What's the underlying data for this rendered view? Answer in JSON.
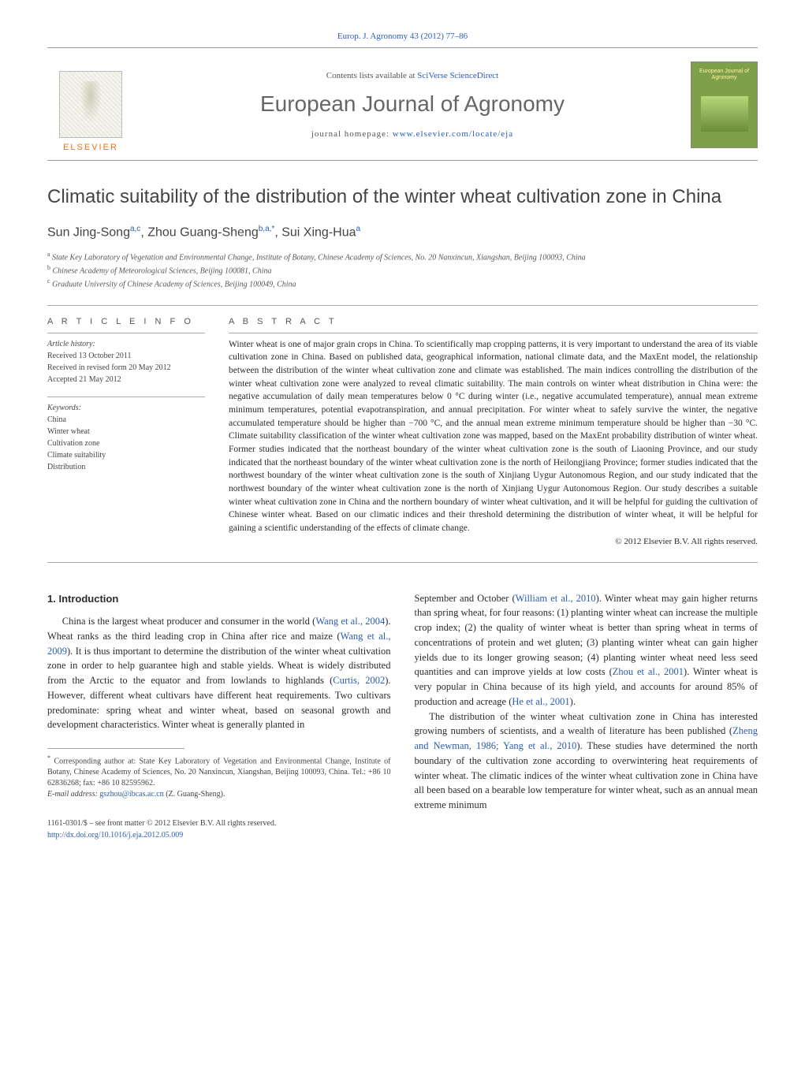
{
  "header": {
    "citation_prefix": "Europ. J. Agronomy 43 (2012) 77–86",
    "contents_line_prefix": "Contents lists available at ",
    "contents_line_link": "SciVerse ScienceDirect",
    "journal_title": "European Journal of Agronomy",
    "homepage_prefix": "journal homepage: ",
    "homepage_link": "www.elsevier.com/locate/eja",
    "publisher_word": "ELSEVIER",
    "cover_title": "European Journal of Agronomy"
  },
  "article": {
    "title": "Climatic suitability of the distribution of the winter wheat cultivation zone in China",
    "authors_html": "Sun Jing-Song",
    "author1": "Sun Jing-Song",
    "author1_sup": "a,c",
    "author2": ", Zhou Guang-Sheng",
    "author2_sup": "b,a,",
    "author2_star": "*",
    "author3": ", Sui Xing-Hua",
    "author3_sup": "a"
  },
  "affiliations": {
    "a_sup": "a",
    "a": " State Key Laboratory of Vegetation and Environmental Change, Institute of Botany, Chinese Academy of Sciences, No. 20 Nanxincun, Xiangshan, Beijing 100093, China",
    "b_sup": "b",
    "b": " Chinese Academy of Meteorological Sciences, Beijing 100081, China",
    "c_sup": "c",
    "c": " Graduate University of Chinese Academy of Sciences, Beijing 100049, China"
  },
  "info": {
    "heading": "A R T I C L E   I N F O",
    "history_label": "Article history:",
    "received": "Received 13 October 2011",
    "revised": "Received in revised form 20 May 2012",
    "accepted": "Accepted 21 May 2012",
    "keywords_label": "Keywords:",
    "kw1": "China",
    "kw2": "Winter wheat",
    "kw3": "Cultivation zone",
    "kw4": "Climate suitability",
    "kw5": "Distribution"
  },
  "abstract": {
    "heading": "A B S T R A C T",
    "text": "Winter wheat is one of major grain crops in China. To scientifically map cropping patterns, it is very important to understand the area of its viable cultivation zone in China. Based on published data, geographical information, national climate data, and the MaxEnt model, the relationship between the distribution of the winter wheat cultivation zone and climate was established. The main indices controlling the distribution of the winter wheat cultivation zone were analyzed to reveal climatic suitability. The main controls on winter wheat distribution in China were: the negative accumulation of daily mean temperatures below 0 °C during winter (i.e., negative accumulated temperature), annual mean extreme minimum temperatures, potential evapotranspiration, and annual precipitation. For winter wheat to safely survive the winter, the negative accumulated temperature should be higher than −700 °C, and the annual mean extreme minimum temperature should be higher than −30 °C. Climate suitability classification of the winter wheat cultivation zone was mapped, based on the MaxEnt probability distribution of winter wheat. Former studies indicated that the northeast boundary of the winter wheat cultivation zone is the south of Liaoning Province, and our study indicated that the northeast boundary of the winter wheat cultivation zone is the north of Heilongjiang Province; former studies indicated that the northwest boundary of the winter wheat cultivation zone is the south of Xinjiang Uygur Autonomous Region, and our study indicated that the northwest boundary of the winter wheat cultivation zone is the north of Xinjiang Uygur Autonomous Region. Our study describes a suitable winter wheat cultivation zone in China and the northern boundary of winter wheat cultivation, and it will be helpful for guiding the cultivation of Chinese winter wheat. Based on our climatic indices and their threshold determining the distribution of winter wheat, it will be helpful for gaining a scientific understanding of the effects of climate change.",
    "copyright": "© 2012 Elsevier B.V. All rights reserved."
  },
  "body": {
    "section_heading": "1.  Introduction",
    "p1a": "China is the largest wheat producer and consumer in the world (",
    "p1_ref1": "Wang et al., 2004",
    "p1b": "). Wheat ranks as the third leading crop in China after rice and maize (",
    "p1_ref2": "Wang et al., 2009",
    "p1c": "). It is thus important to determine the distribution of the winter wheat cultivation zone in order to help guarantee high and stable yields. Wheat is widely distributed from the Arctic to the equator and from lowlands to highlands (",
    "p1_ref3": "Curtis, 2002",
    "p1d": "). However, different wheat cultivars have different heat requirements. Two cultivars predominate: spring wheat and winter wheat, based on seasonal growth and development characteristics. Winter wheat is generally planted in",
    "p2a": "September and October (",
    "p2_ref1": "William et al., 2010",
    "p2b": "). Winter wheat may gain higher returns than spring wheat, for four reasons: (1) planting winter wheat can increase the multiple crop index; (2) the quality of winter wheat is better than spring wheat in terms of concentrations of protein and wet gluten; (3) planting winter wheat can gain higher yields due to its longer growing season; (4) planting winter wheat need less seed quantities and can improve yields at low costs (",
    "p2_ref2": "Zhou et al., 2001",
    "p2c": "). Winter wheat is very popular in China because of its high yield, and accounts for around 85% of production and acreage (",
    "p2_ref3": "He et al., 2001",
    "p2d": ").",
    "p3a": "The distribution of the winter wheat cultivation zone in China has interested growing numbers of scientists, and a wealth of literature has been published (",
    "p3_ref1": "Zheng and Newman, 1986; Yang et al., 2010",
    "p3b": "). These studies have determined the north boundary of the cultivation zone according to overwintering heat requirements of winter wheat. The climatic indices of the winter wheat cultivation zone in China have all been based on a bearable low temperature for winter wheat, such as an annual mean extreme minimum"
  },
  "footnote": {
    "star": "*",
    "corr_label": " Corresponding author at: State Key Laboratory of Vegetation and Environmental Change, Institute of Botany, Chinese Academy of Sciences, No. 20 Nanxincun, Xiangshan, Beijing 100093, China. Tel.: +86 10 62836268; fax: +86 10 82595962.",
    "email_label": "E-mail address: ",
    "email": "gszhou@ibcas.ac.cn",
    "email_suffix": " (Z. Guang-Sheng)."
  },
  "footer": {
    "line1": "1161-0301/$ – see front matter © 2012 Elsevier B.V. All rights reserved.",
    "doi": "http://dx.doi.org/10.1016/j.eja.2012.05.009"
  },
  "colors": {
    "link": "#2a5db0",
    "accent": "#e9711c",
    "cover_bg": "#7fa04a",
    "text": "#2b2b2b"
  }
}
